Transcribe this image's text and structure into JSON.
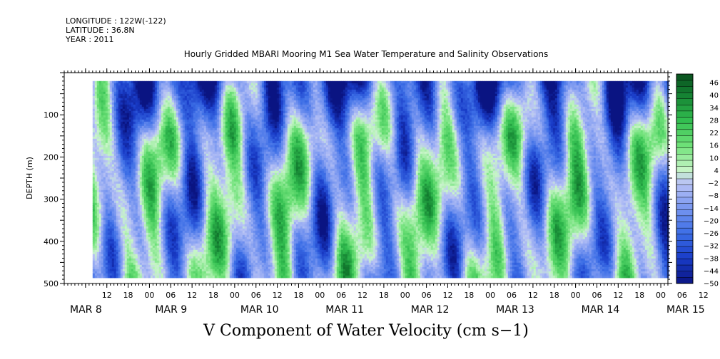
{
  "header": {
    "longitude": "LONGITUDE : 122W(-122)",
    "latitude": "LATITUDE : 36.8N",
    "year": "YEAR : 2011"
  },
  "chart_data": {
    "type": "heatmap",
    "title": "Hourly Gridded MBARI Mooring M1 Sea Water Temperature and Salinity Observations",
    "bottom_title": "V Component of Water Velocity (cm s−1)",
    "ylabel": "DEPTH (m)",
    "xlabel": "",
    "ylim": [
      500,
      0
    ],
    "y_ticks": [
      100,
      200,
      300,
      400,
      500
    ],
    "x_range_hours": [
      0,
      170
    ],
    "data_start_hour": 8,
    "x_hour_labels": [
      "12",
      "18",
      "00",
      "06",
      "12",
      "18",
      "00",
      "06",
      "12",
      "18",
      "00",
      "06",
      "12",
      "18",
      "00",
      "06",
      "12",
      "18",
      "00",
      "06",
      "12",
      "18",
      "00",
      "06",
      "12",
      "18",
      "00",
      "06",
      "12",
      "18",
      "00",
      "06"
    ],
    "x_day_labels": [
      {
        "label": "MAR  8",
        "hour": 0
      },
      {
        "label": "MAR  9",
        "hour": 24
      },
      {
        "label": "MAR 10",
        "hour": 48
      },
      {
        "label": "MAR 11",
        "hour": 72
      },
      {
        "label": "MAR 12",
        "hour": 96
      },
      {
        "label": "MAR 13",
        "hour": 120
      },
      {
        "label": "MAR 14",
        "hour": 144
      },
      {
        "label": "MAR 15",
        "hour": 168
      }
    ],
    "colorbar_labels": [
      "46",
      "40",
      "34",
      "28",
      "22",
      "16",
      "10",
      "4",
      "−2",
      "−8",
      "−14",
      "−20",
      "−26",
      "−32",
      "−38",
      "−44",
      "−50"
    ],
    "colorbar_range": [
      -50,
      50
    ],
    "colors": {
      "strong_negative": "#1a3fd0",
      "mid_negative": "#5f7de8",
      "weak_negative": "#a9b4ee",
      "near_zero": "#c6f0c6",
      "positive": "#6ee07a",
      "strong_positive": "#30c050",
      "max_positive": "#0a5a20"
    }
  }
}
